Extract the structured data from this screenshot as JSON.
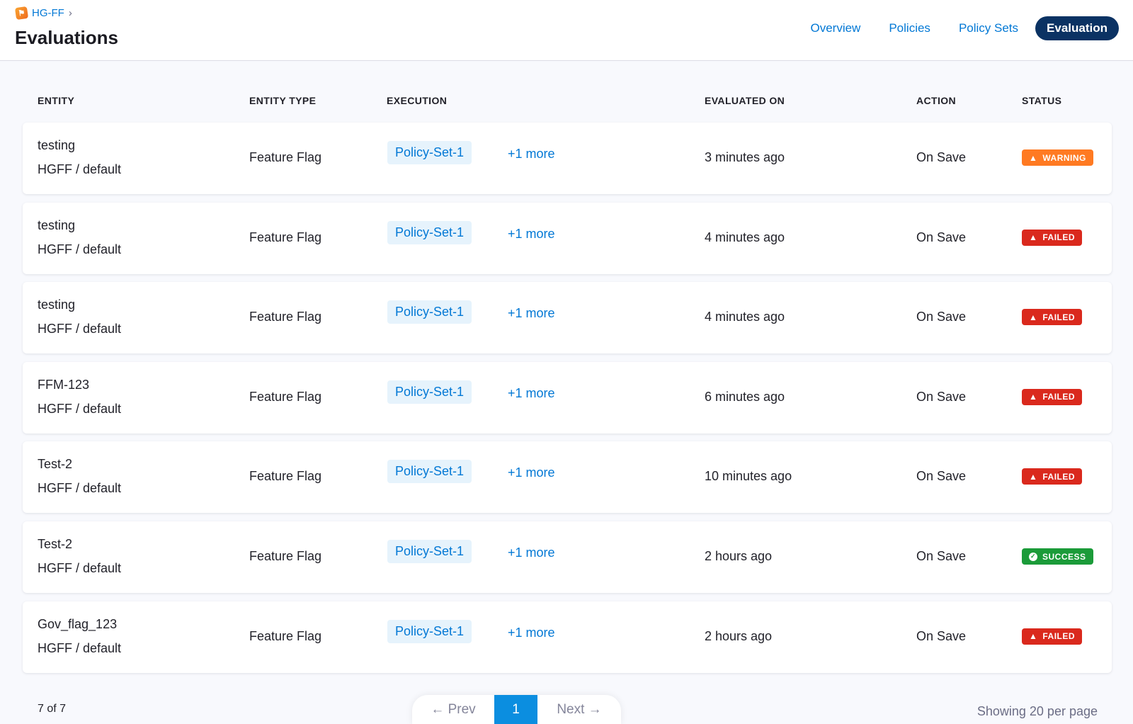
{
  "header": {
    "breadcrumb": "HG-FF",
    "title": "Evaluations",
    "tabs": [
      {
        "label": "Overview"
      },
      {
        "label": "Policies"
      },
      {
        "label": "Policy Sets"
      },
      {
        "label": "Evaluation"
      }
    ],
    "active_tab": "Evaluation"
  },
  "columns": {
    "entity": "ENTITY",
    "entity_type": "ENTITY TYPE",
    "execution": "EXECUTION",
    "evaluated_on": "EVALUATED ON",
    "action": "ACTION",
    "status": "STATUS"
  },
  "rows": [
    {
      "name": "testing",
      "scope": "HGFF / default",
      "type": "Feature Flag",
      "policy": "Policy-Set-1",
      "more": "+1 more",
      "evaluated": "3 minutes ago",
      "action": "On Save",
      "status": "WARNING"
    },
    {
      "name": "testing",
      "scope": "HGFF / default",
      "type": "Feature Flag",
      "policy": "Policy-Set-1",
      "more": "+1 more",
      "evaluated": "4 minutes ago",
      "action": "On Save",
      "status": "FAILED"
    },
    {
      "name": "testing",
      "scope": "HGFF / default",
      "type": "Feature Flag",
      "policy": "Policy-Set-1",
      "more": "+1 more",
      "evaluated": "4 minutes ago",
      "action": "On Save",
      "status": "FAILED"
    },
    {
      "name": "FFM-123",
      "scope": "HGFF / default",
      "type": "Feature Flag",
      "policy": "Policy-Set-1",
      "more": "+1 more",
      "evaluated": "6 minutes ago",
      "action": "On Save",
      "status": "FAILED"
    },
    {
      "name": "Test-2",
      "scope": "HGFF / default",
      "type": "Feature Flag",
      "policy": "Policy-Set-1",
      "more": "+1 more",
      "evaluated": "10 minutes ago",
      "action": "On Save",
      "status": "FAILED"
    },
    {
      "name": "Test-2",
      "scope": "HGFF / default",
      "type": "Feature Flag",
      "policy": "Policy-Set-1",
      "more": "+1 more",
      "evaluated": "2 hours ago",
      "action": "On Save",
      "status": "SUCCESS"
    },
    {
      "name": "Gov_flag_123",
      "scope": "HGFF / default",
      "type": "Feature Flag",
      "policy": "Policy-Set-1",
      "more": "+1 more",
      "evaluated": "2 hours ago",
      "action": "On Save",
      "status": "FAILED"
    }
  ],
  "status_colors": {
    "WARNING": "#ff7a22",
    "FAILED": "#da291d",
    "SUCCESS": "#1b9b39"
  },
  "footer": {
    "count": "7 of 7",
    "prev": "← Prev",
    "page": "1",
    "next": "Next →",
    "per_page": "Showing 20 per page"
  }
}
